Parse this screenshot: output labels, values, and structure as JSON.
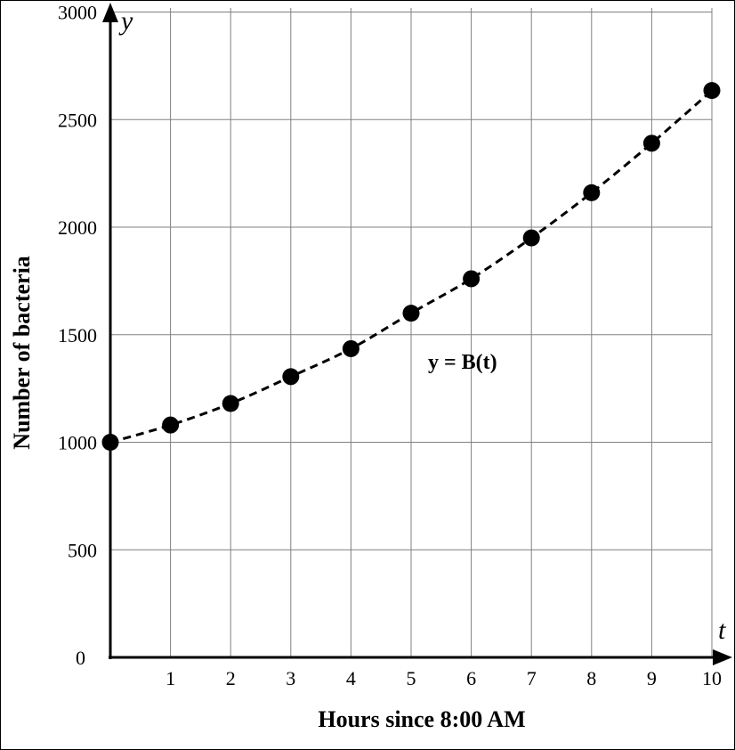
{
  "chart_data": {
    "type": "scatter",
    "x_variable": "t",
    "y_variable": "y",
    "xlabel": "Hours since 8:00 AM",
    "ylabel": "Number of bacteria",
    "x_ticks": [
      1,
      2,
      3,
      4,
      5,
      6,
      7,
      8,
      9,
      10
    ],
    "y_ticks": [
      0,
      500,
      1000,
      1500,
      2000,
      2500,
      3000
    ],
    "xlim": [
      0,
      10
    ],
    "ylim": [
      0,
      3000
    ],
    "grid": true,
    "curve_label": "y = B(t)",
    "points": [
      {
        "x": 0,
        "y": 1000
      },
      {
        "x": 1,
        "y": 1080
      },
      {
        "x": 2,
        "y": 1180
      },
      {
        "x": 3,
        "y": 1305
      },
      {
        "x": 4,
        "y": 1435
      },
      {
        "x": 5,
        "y": 1600
      },
      {
        "x": 6,
        "y": 1760
      },
      {
        "x": 7,
        "y": 1950
      },
      {
        "x": 8,
        "y": 2160
      },
      {
        "x": 9,
        "y": 2390
      },
      {
        "x": 10,
        "y": 2635
      }
    ],
    "colors": {
      "line": "#000000",
      "grid": "#808080",
      "marker": "#000000"
    }
  }
}
